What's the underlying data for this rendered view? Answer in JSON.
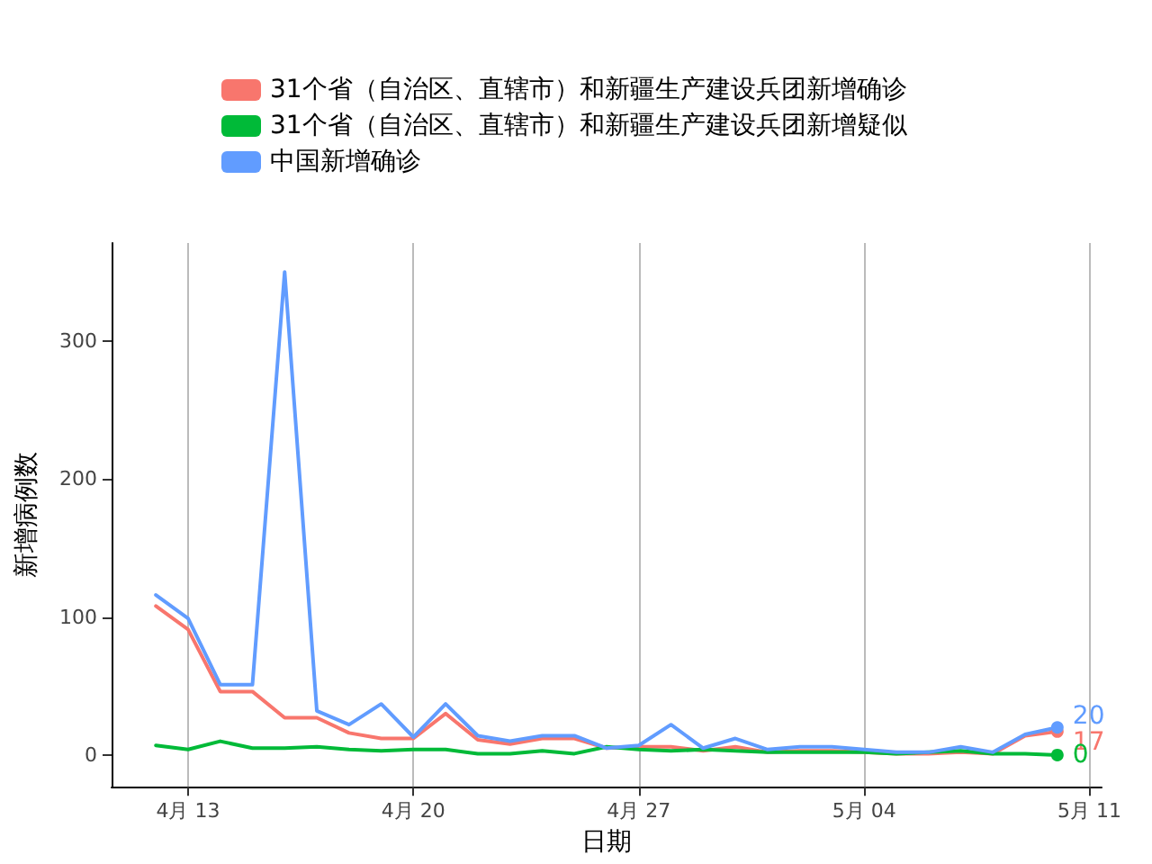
{
  "chart_data": {
    "type": "line",
    "xlabel": "日期",
    "ylabel": "新增病例数",
    "x": [
      "--04-12",
      "--04-13",
      "--04-14",
      "--04-15",
      "--04-16",
      "--04-17",
      "--04-18",
      "--04-19",
      "--04-20",
      "--04-21",
      "--04-22",
      "--04-23",
      "--04-24",
      "--04-25",
      "--04-26",
      "--04-27",
      "--04-28",
      "--04-29",
      "--04-30",
      "--05-01",
      "--05-02",
      "--05-03",
      "--05-04",
      "--05-05",
      "--05-06",
      "--05-07",
      "--05-08",
      "--05-09",
      "--05-10"
    ],
    "series": [
      {
        "name": "31个省（自治区、直辖市）和新疆生产建设兵团新增确诊",
        "color": "#f8766d",
        "values": [
          108,
          91,
          46,
          46,
          27,
          27,
          16,
          12,
          12,
          30,
          11,
          8,
          12,
          12,
          5,
          6,
          6,
          3,
          6,
          2,
          3,
          3,
          2,
          1,
          1,
          2,
          1,
          14,
          17
        ],
        "value_labels": [
          null,
          null,
          null,
          null,
          null,
          null,
          null,
          null,
          null,
          null,
          null,
          null,
          null,
          null,
          null,
          null,
          null,
          null,
          null,
          null,
          null,
          null,
          null,
          null,
          null,
          null,
          null,
          null,
          "17"
        ]
      },
      {
        "name": "31个省（自治区、直辖市）和新疆生产建设兵团新增疑似",
        "color": "#00ba38",
        "values": [
          7,
          4,
          10,
          5,
          5,
          6,
          4,
          3,
          4,
          4,
          1,
          1,
          3,
          1,
          6,
          4,
          3,
          4,
          3,
          2,
          2,
          2,
          2,
          1,
          2,
          3,
          1,
          1,
          0
        ],
        "value_labels": [
          null,
          null,
          null,
          null,
          null,
          null,
          null,
          null,
          null,
          null,
          null,
          null,
          null,
          null,
          null,
          null,
          null,
          null,
          null,
          null,
          null,
          null,
          null,
          null,
          null,
          null,
          null,
          null,
          "0"
        ]
      },
      {
        "name": "中国新增确诊",
        "color": "#619cff",
        "values": [
          116,
          99,
          51,
          51,
          350,
          32,
          22,
          37,
          13,
          37,
          14,
          10,
          14,
          14,
          5,
          7,
          22,
          5,
          12,
          4,
          6,
          6,
          4,
          2,
          2,
          6,
          2,
          15,
          20
        ],
        "value_labels": [
          null,
          null,
          null,
          null,
          null,
          null,
          null,
          null,
          null,
          null,
          null,
          null,
          null,
          null,
          null,
          null,
          null,
          null,
          null,
          null,
          null,
          null,
          null,
          null,
          null,
          null,
          null,
          null,
          "20"
        ]
      }
    ],
    "xlim": [
      "--04-10T15:00",
      "--05-11T09:00"
    ],
    "xticks": [
      {
        "value": "--04-13",
        "label": "4月 13"
      },
      {
        "value": "--04-20",
        "label": "4月 20"
      },
      {
        "value": "--04-27",
        "label": "4月 27"
      },
      {
        "value": "--05-04",
        "label": "5月 04"
      },
      {
        "value": "--05-11",
        "label": "5月 11"
      }
    ],
    "ylim": [
      -23,
      371
    ],
    "yticks": [
      0,
      100,
      200,
      300
    ],
    "grid": "x",
    "legend": "top"
  }
}
